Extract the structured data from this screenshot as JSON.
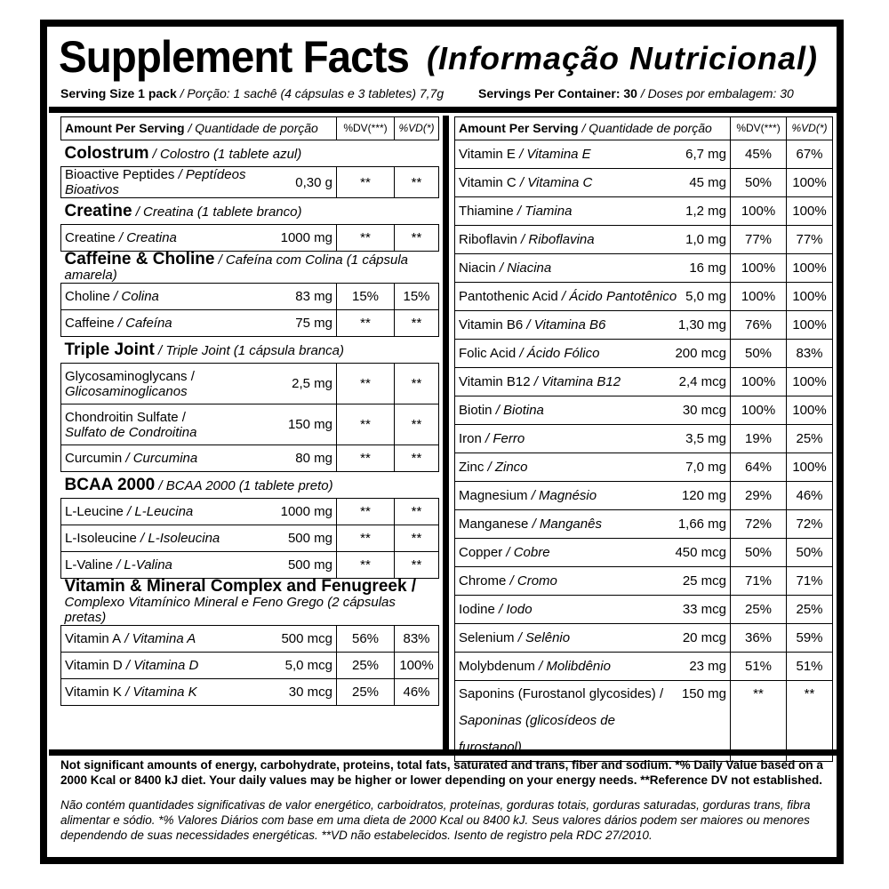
{
  "title": "Supplement Facts",
  "subtitle": "(Informação Nutricional)",
  "serving_size": {
    "en": "Serving Size 1 pack",
    "pt": " / Porção: 1 sachê (4 cápsulas e 3 tabletes) 7,7g"
  },
  "servings_per_container": {
    "en": "Servings Per Container: 30",
    "pt": " / Doses por embalagem: 30"
  },
  "header": {
    "amount_en": "Amount Per Serving",
    "amount_pt": " / Quantidade de porção",
    "dv": "%DV(***)",
    "vd": "%VD(*)"
  },
  "left_sections": [
    {
      "name": "Colostrum",
      "note": " / Colostro (1 tablete azul)",
      "rows": [
        {
          "en": "Bioactive Peptides",
          "pt": " / Peptídeos Bioativos",
          "amount": "0,30 g",
          "dv": "**",
          "vd": "**"
        }
      ]
    },
    {
      "name": "Creatine",
      "note": " / Creatina (1 tablete branco)",
      "rows": [
        {
          "en": "Creatine",
          "pt": " / Creatina",
          "amount": "1000 mg",
          "dv": "**",
          "vd": "**"
        }
      ]
    },
    {
      "name": "Caffeine & Choline",
      "note": " / Cafeína com Colina (1 cápsula amarela)",
      "rows": [
        {
          "en": "Choline",
          "pt": " / Colina",
          "amount": "83 mg",
          "dv": "15%",
          "vd": "15%"
        },
        {
          "en": "Caffeine",
          "pt": " / Cafeína",
          "amount": "75 mg",
          "dv": "**",
          "vd": "**"
        }
      ]
    },
    {
      "name": "Triple Joint",
      "note": " / Triple Joint (1 cápsula branca)",
      "rows": [
        {
          "en": "Glycosaminoglycans /",
          "pt": "Glicosaminoglicanos",
          "amount": "2,5 mg",
          "dv": "**",
          "vd": "**",
          "twoline": true
        },
        {
          "en": "Chondroitin Sulfate /",
          "pt": "Sulfato de Condroitina",
          "amount": "150 mg",
          "dv": "**",
          "vd": "**",
          "twoline": true
        },
        {
          "en": "Curcumin",
          "pt": " / Curcumina",
          "amount": "80 mg",
          "dv": "**",
          "vd": "**"
        }
      ]
    },
    {
      "name": "BCAA 2000",
      "note": " / BCAA 2000 (1 tablete preto)",
      "rows": [
        {
          "en": "L-Leucine",
          "pt": " / L-Leucina",
          "amount": "1000 mg",
          "dv": "**",
          "vd": "**"
        },
        {
          "en": "L-Isoleucine",
          "pt": " / L-Isoleucina",
          "amount": "500 mg",
          "dv": "**",
          "vd": "**"
        },
        {
          "en": "L-Valine",
          "pt": " / L-Valina",
          "amount": "500 mg",
          "dv": "**",
          "vd": "**"
        }
      ]
    },
    {
      "name": "Vitamin & Mineral Complex  and Fenugreek /",
      "note": "Complexo Vitamínico Mineral e Feno Grego (2 cápsulas pretas)",
      "twoline": true,
      "rows": [
        {
          "en": "Vitamin A",
          "pt": " / Vitamina A",
          "amount": "500 mcg",
          "dv": "56%",
          "vd": "83%"
        },
        {
          "en": "Vitamin D",
          "pt": " / Vitamina D",
          "amount": "5,0 mcg",
          "dv": "25%",
          "vd": "100%"
        },
        {
          "en": "Vitamin K",
          "pt": " / Vitamina K",
          "amount": "30 mcg",
          "dv": "25%",
          "vd": "46%"
        }
      ]
    }
  ],
  "right_rows": [
    {
      "en": "Vitamin E",
      "pt": " / Vitamina E",
      "amount": "6,7 mg",
      "dv": "45%",
      "vd": "67%"
    },
    {
      "en": "Vitamin C",
      "pt": " / Vitamina C",
      "amount": "45 mg",
      "dv": "50%",
      "vd": "100%"
    },
    {
      "en": "Thiamine",
      "pt": " / Tiamina",
      "amount": "1,2 mg",
      "dv": "100%",
      "vd": "100%"
    },
    {
      "en": "Riboflavin",
      "pt": " / Riboflavina",
      "amount": "1,0 mg",
      "dv": "77%",
      "vd": "77%"
    },
    {
      "en": "Niacin",
      "pt": " / Niacina",
      "amount": "16 mg",
      "dv": "100%",
      "vd": "100%"
    },
    {
      "en": "Pantothenic Acid",
      "pt": " / Ácido Pantotênico",
      "amount": "5,0 mg",
      "dv": "100%",
      "vd": "100%"
    },
    {
      "en": "Vitamin B6",
      "pt": " / Vitamina B6",
      "amount": "1,30 mg",
      "dv": "76%",
      "vd": "100%"
    },
    {
      "en": "Folic Acid",
      "pt": " / Ácido Fólico",
      "amount": "200 mcg",
      "dv": "50%",
      "vd": "83%"
    },
    {
      "en": "Vitamin B12",
      "pt": " / Vitamina B12",
      "amount": "2,4 mcg",
      "dv": "100%",
      "vd": "100%"
    },
    {
      "en": "Biotin",
      "pt": " / Biotina",
      "amount": "30 mcg",
      "dv": "100%",
      "vd": "100%"
    },
    {
      "en": "Iron",
      "pt": " / Ferro",
      "amount": "3,5 mg",
      "dv": "19%",
      "vd": "25%"
    },
    {
      "en": "Zinc",
      "pt": " / Zinco",
      "amount": "7,0 mg",
      "dv": "64%",
      "vd": "100%"
    },
    {
      "en": "Magnesium",
      "pt": " / Magnésio",
      "amount": "120 mg",
      "dv": "29%",
      "vd": "46%"
    },
    {
      "en": "Manganese",
      "pt": " / Manganês",
      "amount": "1,66 mg",
      "dv": "72%",
      "vd": "72%"
    },
    {
      "en": "Copper",
      "pt": " / Cobre",
      "amount": "450 mcg",
      "dv": "50%",
      "vd": "50%"
    },
    {
      "en": "Chrome",
      "pt": " / Cromo",
      "amount": "25 mcg",
      "dv": "71%",
      "vd": "71%"
    },
    {
      "en": "Iodine",
      "pt": " / Iodo",
      "amount": "33 mcg",
      "dv": "25%",
      "vd": "25%"
    },
    {
      "en": "Selenium",
      "pt": " / Selênio",
      "amount": "20 mcg",
      "dv": "36%",
      "vd": "59%"
    },
    {
      "en": "Molybdenum",
      "pt": " / Molibdênio",
      "amount": "23 mg",
      "dv": "51%",
      "vd": "51%"
    },
    {
      "en": "Saponins (Furostanol glycosides) /",
      "pt": "Saponinas (glicosídeos de  furostanol)",
      "amount": "150 mg",
      "dv": "**",
      "vd": "**",
      "twoline": true
    }
  ],
  "footnote_en": "Not significant amounts of energy, carbohydrate, proteins, total fats, saturated and trans, fiber and sodium. *% Daily Value based on a 2000 Kcal or 8400 kJ diet. Your daily values may be higher or lower depending on your energy needs. **Reference DV not established.",
  "footnote_pt": "Não contém quantidades significativas de valor energético,  carboidratos, proteínas, gorduras totais, gorduras saturadas, gorduras trans, fibra alimentar e sódio. *% Valores Diários com base em uma dieta de 2000 Kcal ou 8400 kJ. Seus valores dários podem ser maiores ou menores dependendo de suas necessidades energéticas. **VD não estabelecidos. Isento de registro pela RDC 27/2010."
}
